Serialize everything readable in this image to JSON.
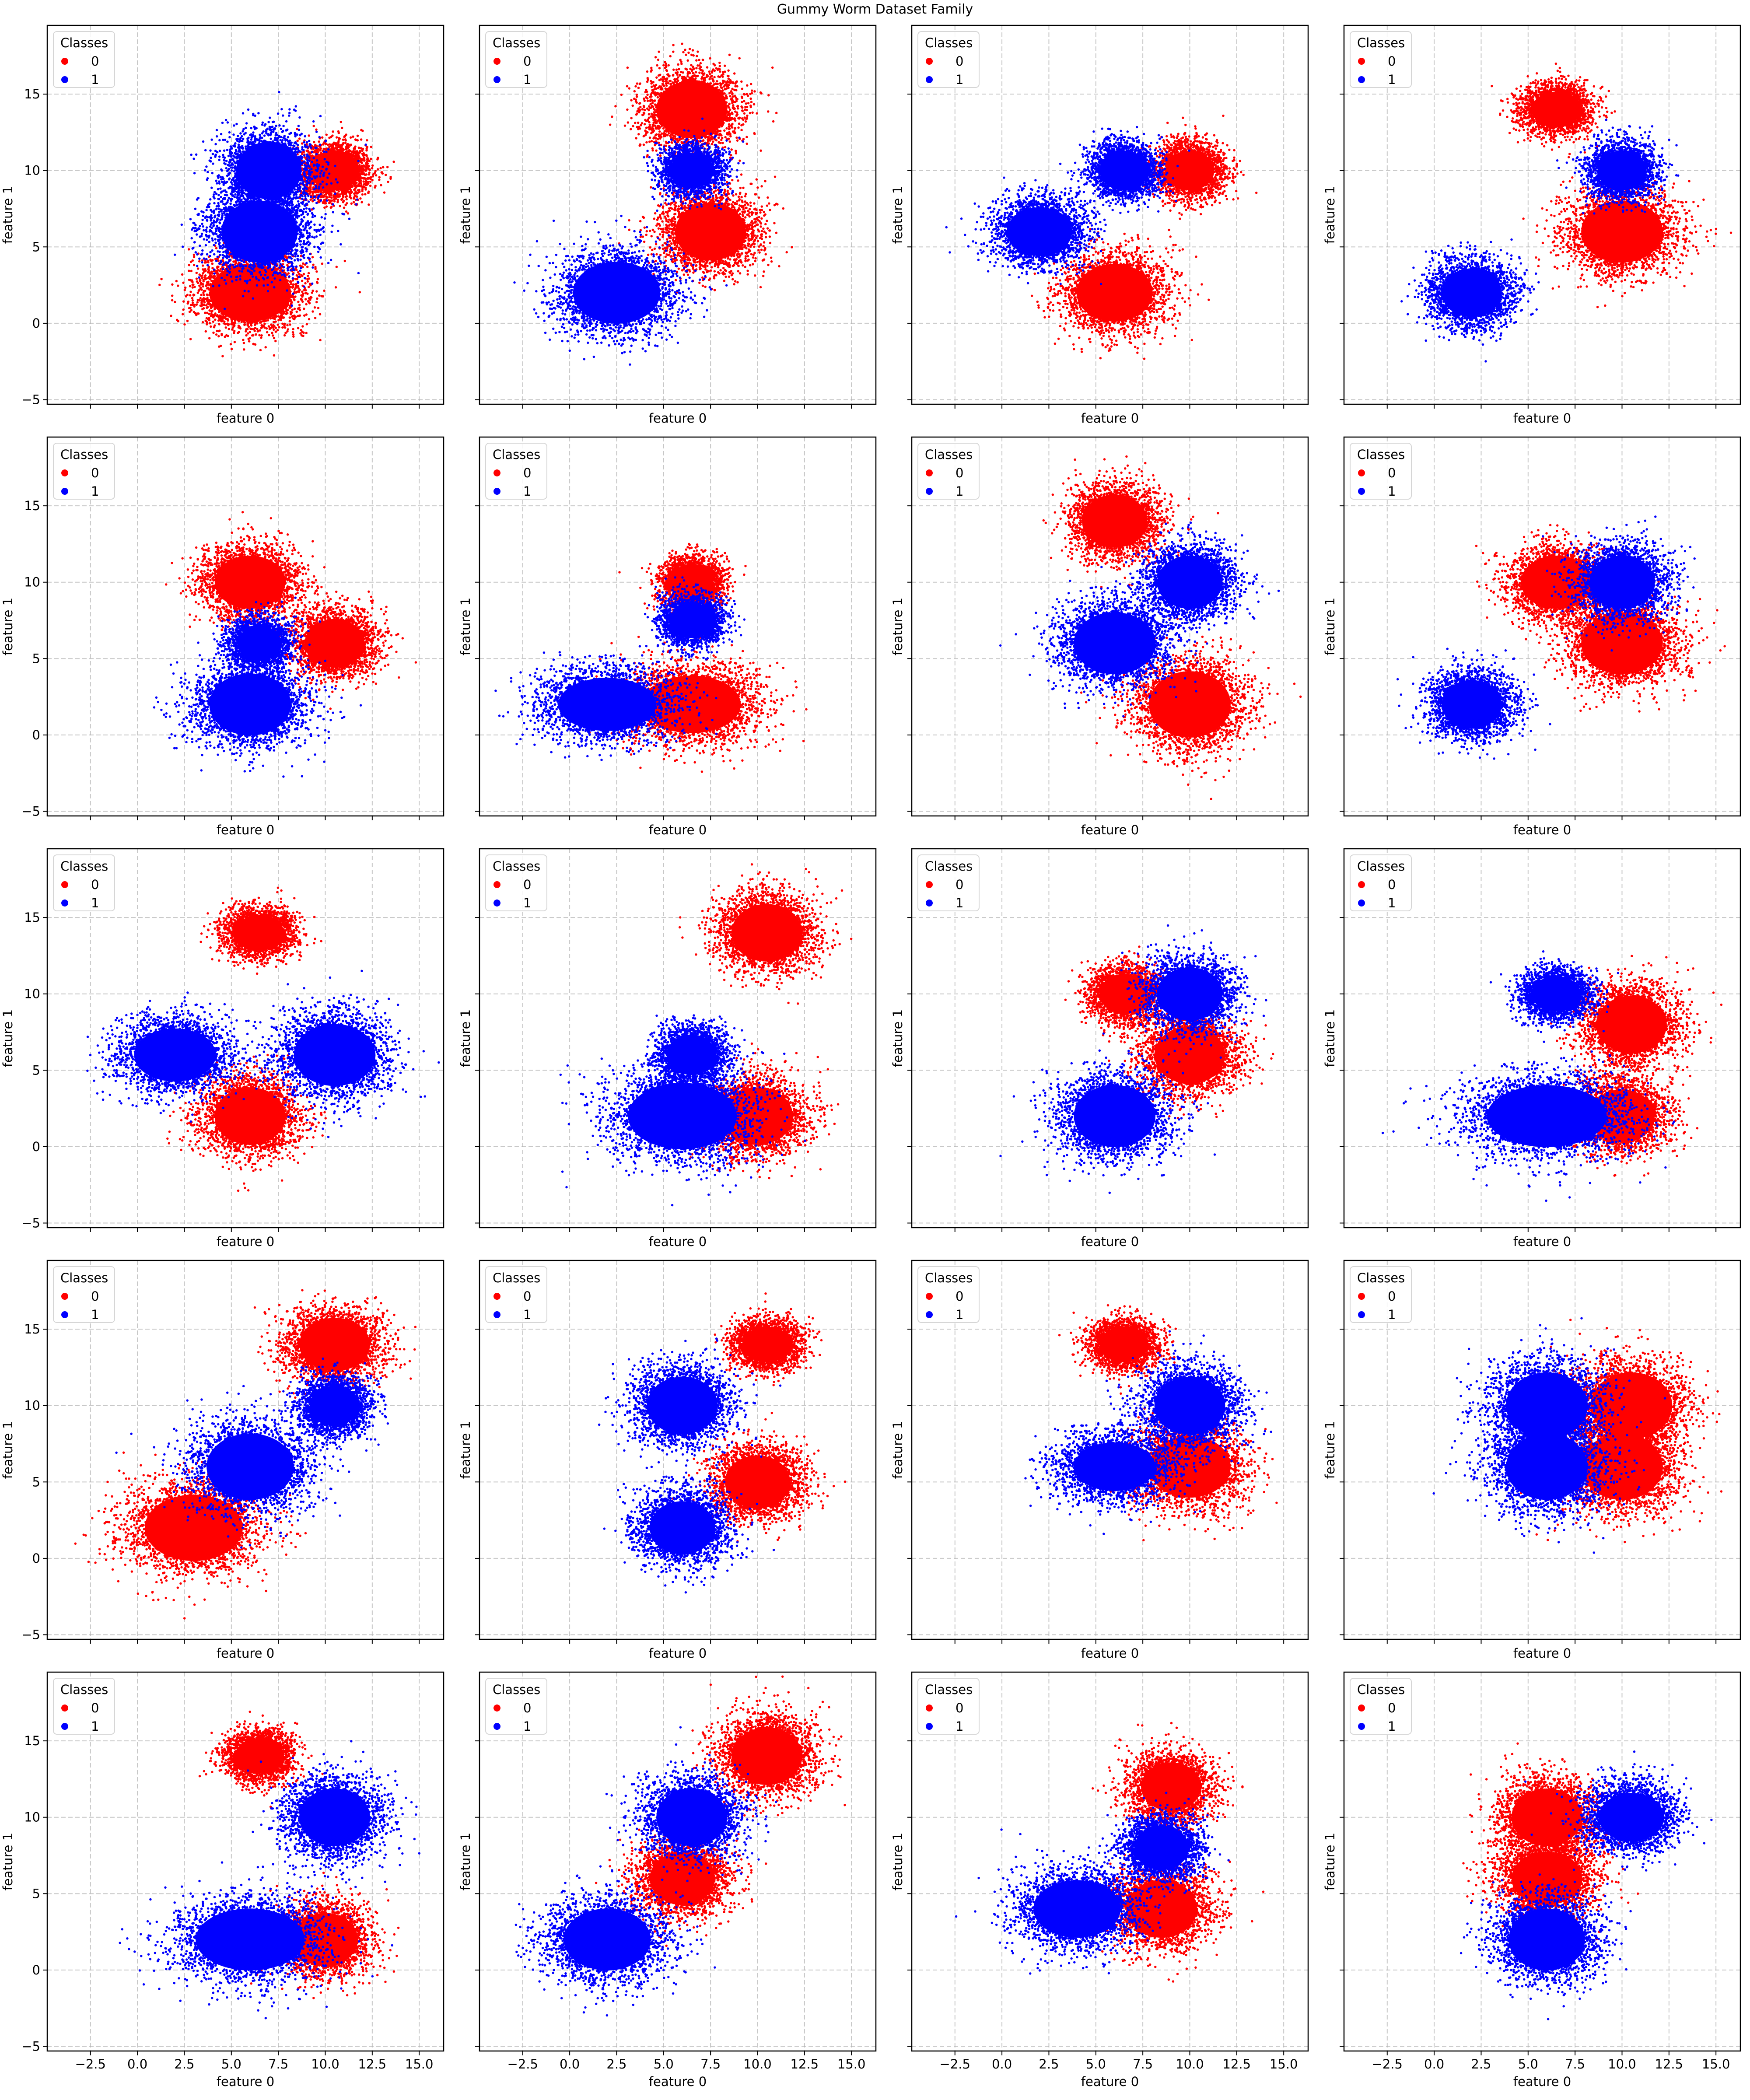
{
  "figure": {
    "title": "Gummy Worm Dataset Family"
  },
  "chart_data": {
    "type": "scatter",
    "layout": {
      "rows": 5,
      "cols": 4,
      "sharex": true,
      "sharey": true
    },
    "xlabel": "feature 0",
    "ylabel": "feature 1",
    "xlim": [
      -4.8,
      16.3
    ],
    "ylim": [
      -5.3,
      19.5
    ],
    "xticks": [
      -2.5,
      0.0,
      2.5,
      5.0,
      7.5,
      10.0,
      12.5,
      15.0
    ],
    "xtick_labels": [
      "−2.5",
      "0.0",
      "2.5",
      "5.0",
      "7.5",
      "10.0",
      "12.5",
      "15.0"
    ],
    "yticks": [
      -5,
      0,
      5,
      10,
      15
    ],
    "ytick_labels": [
      "−5",
      "0",
      "5",
      "10",
      "15"
    ],
    "grid": true,
    "legend": {
      "title": "Classes",
      "placement": "upper-left",
      "entries": [
        {
          "label": "0",
          "color": "#ff0000"
        },
        {
          "label": "1",
          "color": "#0000ff"
        }
      ]
    },
    "class_colors": {
      "0": "#ff0000",
      "1": "#0000ff"
    },
    "panels": [
      {
        "clusters": [
          {
            "cls": 0,
            "cx": 10.5,
            "cy": 10,
            "sx": 0.9,
            "sy": 0.9
          },
          {
            "cls": 0,
            "cx": 6,
            "cy": 2,
            "sx": 1.5,
            "sy": 1.3
          },
          {
            "cls": 1,
            "cx": 6.5,
            "cy": 6,
            "sx": 1.4,
            "sy": 1.4
          },
          {
            "cls": 1,
            "cx": 7,
            "cy": 10,
            "sx": 1.2,
            "sy": 1.3
          }
        ]
      },
      {
        "clusters": [
          {
            "cls": 0,
            "cx": 6.5,
            "cy": 14,
            "sx": 1.3,
            "sy": 1.3
          },
          {
            "cls": 0,
            "cx": 7.5,
            "cy": 6,
            "sx": 1.3,
            "sy": 1.3
          },
          {
            "cls": 1,
            "cx": 2.5,
            "cy": 2,
            "sx": 1.6,
            "sy": 1.4
          },
          {
            "cls": 1,
            "cx": 6.5,
            "cy": 10,
            "sx": 0.8,
            "sy": 0.8
          }
        ]
      },
      {
        "clusters": [
          {
            "cls": 0,
            "cx": 10,
            "cy": 10,
            "sx": 0.9,
            "sy": 0.9
          },
          {
            "cls": 0,
            "cx": 6,
            "cy": 2,
            "sx": 1.4,
            "sy": 1.3
          },
          {
            "cls": 1,
            "cx": 2,
            "cy": 6,
            "sx": 1.2,
            "sy": 1.1
          },
          {
            "cls": 1,
            "cx": 6.5,
            "cy": 10,
            "sx": 0.9,
            "sy": 0.9
          }
        ]
      },
      {
        "clusters": [
          {
            "cls": 0,
            "cx": 6.5,
            "cy": 14,
            "sx": 0.9,
            "sy": 0.8
          },
          {
            "cls": 0,
            "cx": 10,
            "cy": 6,
            "sx": 1.5,
            "sy": 1.4
          },
          {
            "cls": 1,
            "cx": 2,
            "cy": 2,
            "sx": 1.1,
            "sy": 1.1
          },
          {
            "cls": 1,
            "cx": 10,
            "cy": 10,
            "sx": 0.9,
            "sy": 0.9
          }
        ]
      },
      {
        "clusters": [
          {
            "cls": 0,
            "cx": 6,
            "cy": 10,
            "sx": 1.3,
            "sy": 1.2
          },
          {
            "cls": 0,
            "cx": 10.5,
            "cy": 6,
            "sx": 1.1,
            "sy": 1.1
          },
          {
            "cls": 1,
            "cx": 6,
            "cy": 2,
            "sx": 1.5,
            "sy": 1.4
          },
          {
            "cls": 1,
            "cx": 6.5,
            "cy": 6,
            "sx": 0.8,
            "sy": 0.8
          }
        ]
      },
      {
        "clusters": [
          {
            "cls": 0,
            "cx": 6.5,
            "cy": 10,
            "sx": 0.8,
            "sy": 0.8
          },
          {
            "cls": 0,
            "cx": 6.5,
            "cy": 2,
            "sx": 1.8,
            "sy": 1.3
          },
          {
            "cls": 1,
            "cx": 2,
            "cy": 2,
            "sx": 1.8,
            "sy": 1.2
          },
          {
            "cls": 1,
            "cx": 6.5,
            "cy": 7.5,
            "sx": 0.8,
            "sy": 0.8
          }
        ]
      },
      {
        "clusters": [
          {
            "cls": 0,
            "cx": 6,
            "cy": 14,
            "sx": 1.2,
            "sy": 1.2
          },
          {
            "cls": 0,
            "cx": 10,
            "cy": 2,
            "sx": 1.5,
            "sy": 1.5
          },
          {
            "cls": 1,
            "cx": 6,
            "cy": 6,
            "sx": 1.5,
            "sy": 1.4
          },
          {
            "cls": 1,
            "cx": 10,
            "cy": 10,
            "sx": 1.2,
            "sy": 1.2
          }
        ]
      },
      {
        "clusters": [
          {
            "cls": 0,
            "cx": 6.5,
            "cy": 10,
            "sx": 1.3,
            "sy": 1.2
          },
          {
            "cls": 0,
            "cx": 10,
            "cy": 6,
            "sx": 1.5,
            "sy": 1.4
          },
          {
            "cls": 1,
            "cx": 2,
            "cy": 2,
            "sx": 1.1,
            "sy": 1.1
          },
          {
            "cls": 1,
            "cx": 10,
            "cy": 10,
            "sx": 1.2,
            "sy": 1.2
          }
        ]
      },
      {
        "clusters": [
          {
            "cls": 0,
            "cx": 6.5,
            "cy": 14,
            "sx": 0.9,
            "sy": 0.8
          },
          {
            "cls": 0,
            "cx": 6,
            "cy": 2,
            "sx": 1.3,
            "sy": 1.3
          },
          {
            "cls": 1,
            "cx": 2,
            "cy": 6,
            "sx": 1.5,
            "sy": 1.2
          },
          {
            "cls": 1,
            "cx": 10.5,
            "cy": 6,
            "sx": 1.5,
            "sy": 1.4
          }
        ]
      },
      {
        "clusters": [
          {
            "cls": 0,
            "cx": 10.5,
            "cy": 14,
            "sx": 1.3,
            "sy": 1.3
          },
          {
            "cls": 0,
            "cx": 10,
            "cy": 2,
            "sx": 1.3,
            "sy": 1.3
          },
          {
            "cls": 1,
            "cx": 6,
            "cy": 2,
            "sx": 2,
            "sy": 1.5
          },
          {
            "cls": 1,
            "cx": 6.5,
            "cy": 6,
            "sx": 0.9,
            "sy": 0.9
          }
        ]
      },
      {
        "clusters": [
          {
            "cls": 0,
            "cx": 6.5,
            "cy": 10,
            "sx": 0.9,
            "sy": 0.9
          },
          {
            "cls": 0,
            "cx": 10,
            "cy": 6,
            "sx": 1.3,
            "sy": 1.3
          },
          {
            "cls": 1,
            "cx": 6,
            "cy": 2,
            "sx": 1.5,
            "sy": 1.4
          },
          {
            "cls": 1,
            "cx": 10,
            "cy": 10,
            "sx": 1.2,
            "sy": 1.2
          }
        ]
      },
      {
        "clusters": [
          {
            "cls": 0,
            "cx": 10.5,
            "cy": 8,
            "sx": 1.3,
            "sy": 1.3
          },
          {
            "cls": 0,
            "cx": 10,
            "cy": 2,
            "sx": 1.2,
            "sy": 1.2
          },
          {
            "cls": 1,
            "cx": 6,
            "cy": 2,
            "sx": 2.2,
            "sy": 1.4
          },
          {
            "cls": 1,
            "cx": 6.5,
            "cy": 10,
            "sx": 0.9,
            "sy": 0.8
          }
        ]
      },
      {
        "clusters": [
          {
            "cls": 0,
            "cx": 10.5,
            "cy": 14,
            "sx": 1.3,
            "sy": 1.2
          },
          {
            "cls": 0,
            "cx": 3,
            "cy": 2,
            "sx": 1.8,
            "sy": 1.5
          },
          {
            "cls": 1,
            "cx": 6,
            "cy": 6,
            "sx": 1.6,
            "sy": 1.5
          },
          {
            "cls": 1,
            "cx": 10.5,
            "cy": 10,
            "sx": 0.9,
            "sy": 0.9
          }
        ]
      },
      {
        "clusters": [
          {
            "cls": 0,
            "cx": 10.5,
            "cy": 14,
            "sx": 0.9,
            "sy": 0.8
          },
          {
            "cls": 0,
            "cx": 10,
            "cy": 5,
            "sx": 1.2,
            "sy": 1.2
          },
          {
            "cls": 1,
            "cx": 6,
            "cy": 10,
            "sx": 1.3,
            "sy": 1.3
          },
          {
            "cls": 1,
            "cx": 6,
            "cy": 2,
            "sx": 1.2,
            "sy": 1.2
          }
        ]
      },
      {
        "clusters": [
          {
            "cls": 0,
            "cx": 6.5,
            "cy": 14,
            "sx": 0.9,
            "sy": 0.8
          },
          {
            "cls": 0,
            "cx": 10,
            "cy": 6,
            "sx": 1.5,
            "sy": 1.4
          },
          {
            "cls": 1,
            "cx": 6,
            "cy": 6,
            "sx": 1.5,
            "sy": 1.1
          },
          {
            "cls": 1,
            "cx": 10,
            "cy": 10,
            "sx": 1.3,
            "sy": 1.3
          }
        ]
      },
      {
        "clusters": [
          {
            "cls": 0,
            "cx": 10.5,
            "cy": 10,
            "sx": 1.5,
            "sy": 1.5
          },
          {
            "cls": 0,
            "cx": 10,
            "cy": 6,
            "sx": 1.5,
            "sy": 1.5
          },
          {
            "cls": 1,
            "cx": 6,
            "cy": 10,
            "sx": 1.5,
            "sy": 1.5
          },
          {
            "cls": 1,
            "cx": 6,
            "cy": 6,
            "sx": 1.5,
            "sy": 1.5
          }
        ]
      },
      {
        "clusters": [
          {
            "cls": 0,
            "cx": 6.5,
            "cy": 14,
            "sx": 0.9,
            "sy": 0.8
          },
          {
            "cls": 0,
            "cx": 10,
            "cy": 2,
            "sx": 1.2,
            "sy": 1.2
          },
          {
            "cls": 1,
            "cx": 6,
            "cy": 2,
            "sx": 2,
            "sy": 1.4
          },
          {
            "cls": 1,
            "cx": 10.5,
            "cy": 10,
            "sx": 1.3,
            "sy": 1.3
          }
        ]
      },
      {
        "clusters": [
          {
            "cls": 0,
            "cx": 10.5,
            "cy": 14,
            "sx": 1.3,
            "sy": 1.3
          },
          {
            "cls": 0,
            "cx": 6,
            "cy": 6,
            "sx": 1.2,
            "sy": 1.2
          },
          {
            "cls": 1,
            "cx": 2,
            "cy": 2,
            "sx": 1.6,
            "sy": 1.4
          },
          {
            "cls": 1,
            "cx": 6.5,
            "cy": 10,
            "sx": 1.3,
            "sy": 1.3
          }
        ]
      },
      {
        "clusters": [
          {
            "cls": 0,
            "cx": 9,
            "cy": 12,
            "sx": 1.1,
            "sy": 1.1
          },
          {
            "cls": 0,
            "cx": 8.5,
            "cy": 4,
            "sx": 1.3,
            "sy": 1.3
          },
          {
            "cls": 1,
            "cx": 4,
            "cy": 4,
            "sx": 1.6,
            "sy": 1.3
          },
          {
            "cls": 1,
            "cx": 8.5,
            "cy": 8,
            "sx": 1,
            "sy": 1
          }
        ]
      },
      {
        "clusters": [
          {
            "cls": 0,
            "cx": 6,
            "cy": 10,
            "sx": 1.3,
            "sy": 1.3
          },
          {
            "cls": 0,
            "cx": 6,
            "cy": 6,
            "sx": 1.3,
            "sy": 1.2
          },
          {
            "cls": 1,
            "cx": 6,
            "cy": 2,
            "sx": 1.4,
            "sy": 1.4
          },
          {
            "cls": 1,
            "cx": 10.5,
            "cy": 10,
            "sx": 1.2,
            "sy": 1.1
          }
        ]
      }
    ]
  }
}
